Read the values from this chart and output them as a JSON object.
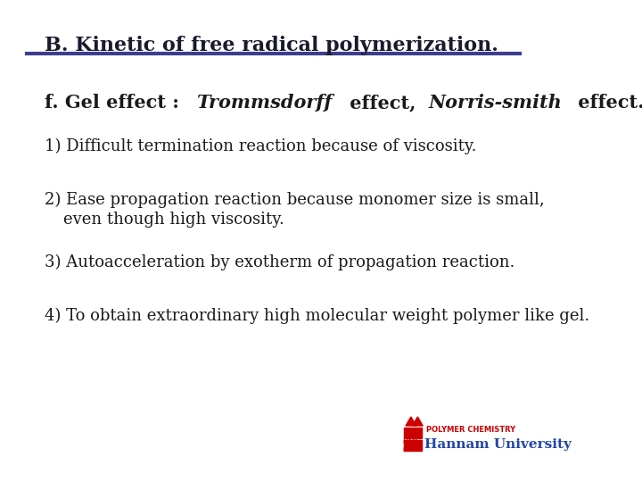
{
  "background_color": "#ffffff",
  "header_text": "B. Kinetic of free radical polymerization.",
  "header_color": "#1a1a2e",
  "header_line_color": "#3d3d8f",
  "header_fontsize": 16,
  "header_bold": true,
  "section_title_parts": [
    {
      "text": "f. Gel effect : ",
      "style": "bold",
      "color": "#1a1a1a"
    },
    {
      "text": "Trommsdorff",
      "style": "bolditalic",
      "color": "#1a1a1a"
    },
    {
      "text": " effect, ",
      "style": "bold",
      "color": "#1a1a1a"
    },
    {
      "text": "Norris-smith",
      "style": "bolditalic",
      "color": "#1a1a1a"
    },
    {
      "text": " effect.",
      "style": "bold",
      "color": "#1a1a1a"
    }
  ],
  "section_title_fontsize": 15,
  "items": [
    {
      "number": "1)",
      "text": "Difficult termination reaction because of viscosity.",
      "continuation": null
    },
    {
      "number": "2)",
      "text": "Ease propagation reaction because monomer size is small,",
      "continuation": "even though high viscosity."
    },
    {
      "number": "3)",
      "text": "Autoacceleration by exotherm of propagation reaction.",
      "continuation": null
    },
    {
      "number": "4)",
      "text": "To obtain extraordinary high molecular weight polymer like gel.",
      "continuation": null
    }
  ],
  "item_fontsize": 13,
  "item_color": "#1a1a1a",
  "logo_text_top": "POLYMER CHEMISTRY",
  "logo_text_bottom": "Hannam University",
  "logo_color_red": "#cc0000",
  "logo_color_blue": "#2244aa"
}
